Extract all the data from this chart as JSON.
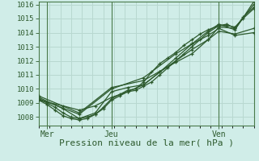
{
  "xlabel": "Pression niveau de la mer( hPa )",
  "background_color": "#d0ede8",
  "plot_bg_color": "#d0ede8",
  "grid_color": "#b8d8d0",
  "line_color": "#2d5a2d",
  "ylim": [
    1007.4,
    1016.2
  ],
  "xlim": [
    0,
    80
  ],
  "yticks": [
    1008,
    1009,
    1010,
    1011,
    1012,
    1013,
    1014,
    1015,
    1016
  ],
  "xticks": [
    3,
    27,
    67
  ],
  "xtick_labels": [
    "Mer",
    "Jeu",
    "Ven"
  ],
  "vlines": [
    3,
    27,
    67
  ],
  "series": [
    [
      0,
      1009.3,
      3,
      1009.0,
      6,
      1008.7,
      9,
      1008.3,
      12,
      1008.0,
      15,
      1007.9,
      18,
      1008.0,
      21,
      1008.2,
      24,
      1008.6,
      27,
      1009.2,
      30,
      1009.5,
      33,
      1009.8,
      36,
      1009.9,
      39,
      1010.2,
      42,
      1010.5,
      45,
      1011.0,
      48,
      1011.5,
      51,
      1012.0,
      54,
      1012.5,
      57,
      1013.0,
      60,
      1013.5,
      63,
      1014.0,
      67,
      1014.5,
      70,
      1014.5,
      73,
      1014.4,
      76,
      1015.0,
      80,
      1015.7
    ],
    [
      0,
      1009.2,
      3,
      1008.9,
      6,
      1008.5,
      9,
      1008.1,
      12,
      1007.9,
      15,
      1007.8,
      18,
      1007.9,
      21,
      1008.2,
      24,
      1008.7,
      27,
      1009.3,
      30,
      1009.6,
      33,
      1009.9,
      36,
      1010.0,
      39,
      1010.5,
      42,
      1011.2,
      45,
      1011.8,
      48,
      1012.2,
      51,
      1012.6,
      54,
      1013.1,
      57,
      1013.5,
      60,
      1013.9,
      63,
      1014.2,
      67,
      1014.5,
      70,
      1014.6,
      73,
      1014.3,
      76,
      1015.1,
      80,
      1015.8
    ],
    [
      0,
      1009.4,
      9,
      1008.6,
      15,
      1007.9,
      21,
      1008.3,
      27,
      1009.8,
      33,
      1010.1,
      39,
      1010.3,
      45,
      1011.2,
      51,
      1012.2,
      57,
      1013.2,
      63,
      1014.1,
      67,
      1014.6,
      73,
      1014.2,
      80,
      1016.2
    ],
    [
      0,
      1009.5,
      15,
      1008.3,
      27,
      1010.1,
      39,
      1010.6,
      51,
      1011.9,
      57,
      1012.5,
      63,
      1013.5,
      67,
      1014.4,
      73,
      1014.3,
      80,
      1016.0
    ],
    [
      0,
      1009.2,
      9,
      1008.8,
      15,
      1008.5,
      21,
      1008.8,
      27,
      1009.4,
      33,
      1009.8,
      39,
      1010.3,
      45,
      1011.2,
      51,
      1012.0,
      57,
      1012.8,
      63,
      1013.5,
      67,
      1014.1,
      73,
      1013.9,
      80,
      1014.3
    ],
    [
      0,
      1009.3,
      15,
      1008.2,
      27,
      1010.0,
      39,
      1010.8,
      51,
      1012.5,
      57,
      1013.2,
      63,
      1013.8,
      67,
      1014.3,
      73,
      1013.8,
      80,
      1014.0
    ]
  ]
}
